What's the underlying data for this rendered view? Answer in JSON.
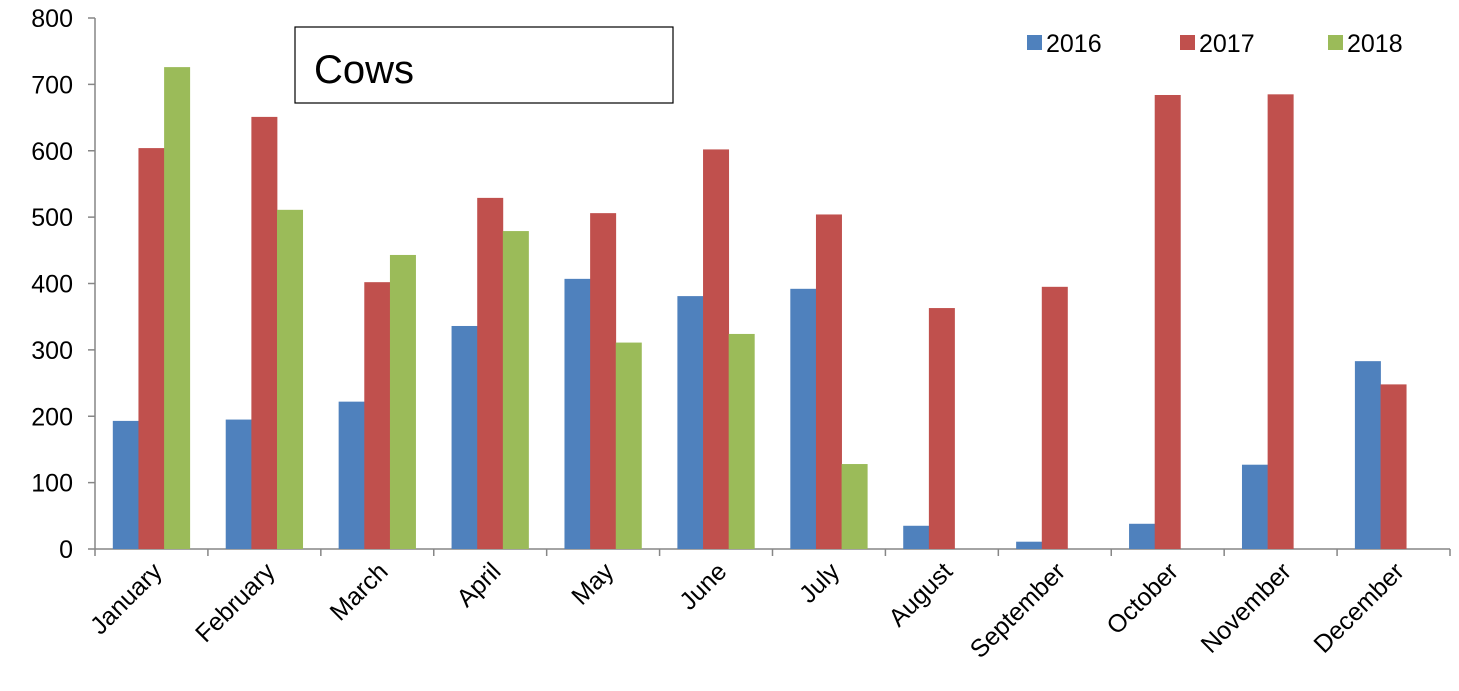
{
  "chart_data": {
    "type": "bar",
    "title": "Cows",
    "xlabel": "",
    "ylabel": "",
    "ylim": [
      0,
      800
    ],
    "yticks": [
      0,
      100,
      200,
      300,
      400,
      500,
      600,
      700,
      800
    ],
    "grid": false,
    "legend_position": "top-right",
    "categories": [
      "January",
      "February",
      "March",
      "April",
      "May",
      "June",
      "July",
      "August",
      "September",
      "October",
      "November",
      "December"
    ],
    "series": [
      {
        "name": "2016",
        "color": "#4F81BD",
        "values": [
          193,
          195,
          222,
          336,
          407,
          381,
          392,
          35,
          11,
          38,
          127,
          283
        ]
      },
      {
        "name": "2017",
        "color": "#C0504D",
        "values": [
          604,
          651,
          402,
          529,
          506,
          602,
          504,
          363,
          395,
          684,
          685,
          248
        ]
      },
      {
        "name": "2018",
        "color": "#9BBB59",
        "values": [
          726,
          511,
          443,
          479,
          311,
          324,
          128,
          null,
          null,
          null,
          null,
          null
        ]
      }
    ]
  }
}
